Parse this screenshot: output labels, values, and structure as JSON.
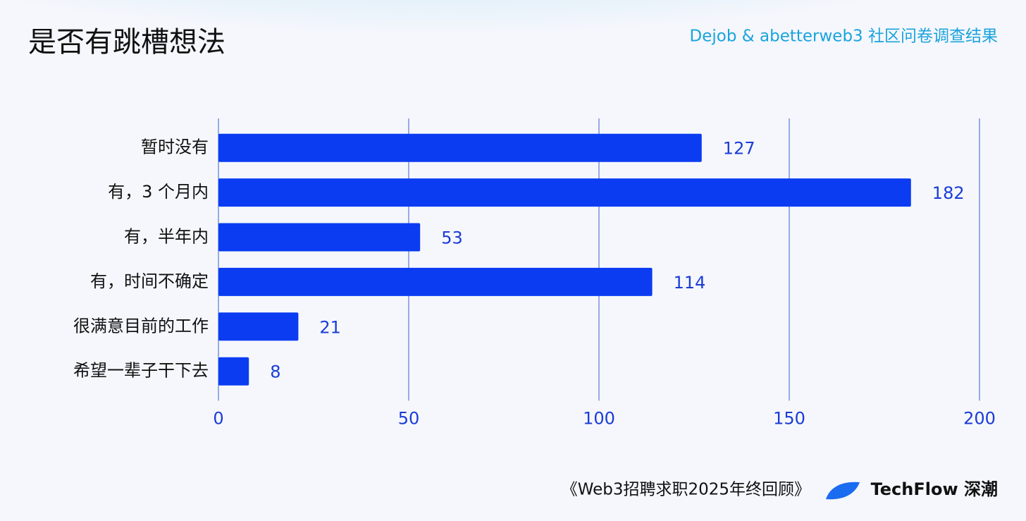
{
  "chart_data": {
    "type": "bar",
    "orientation": "horizontal",
    "title": "是否有跳槽想法",
    "subtitle": "Dejob & abetterweb3 社区问卷调查结果",
    "categories": [
      "暂时没有",
      "有，3 个月内",
      "有，半年内",
      "有，时间不确定",
      "很满意目前的工作",
      "希望一辈子干下去"
    ],
    "values": [
      127,
      182,
      53,
      114,
      21,
      8
    ],
    "color": "#0b3cf2",
    "xlim": [
      0,
      200
    ],
    "xticks": [
      0,
      50,
      100,
      150,
      200
    ],
    "grid": true,
    "footer": "《Web3招聘求职2025年终回顾》",
    "brand": "TechFlow 深潮"
  }
}
